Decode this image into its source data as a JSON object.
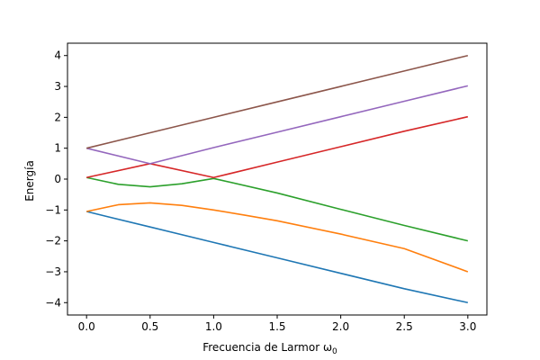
{
  "chart_data": {
    "type": "line",
    "xlabel": "Frecuencia de Larmor ω",
    "xlabel_subscript": "0",
    "ylabel": "Energía",
    "xlim": [
      -0.15,
      3.15
    ],
    "ylim": [
      -4.4,
      4.4
    ],
    "x_ticks": [
      0.0,
      0.5,
      1.0,
      1.5,
      2.0,
      2.5,
      3.0
    ],
    "x_tick_labels": [
      "0.0",
      "0.5",
      "1.0",
      "1.5",
      "2.0",
      "2.5",
      "3.0"
    ],
    "y_ticks": [
      -4,
      -3,
      -2,
      -1,
      0,
      1,
      2,
      3,
      4
    ],
    "y_tick_labels": [
      "−4",
      "−3",
      "−2",
      "−1",
      "0",
      "1",
      "2",
      "3",
      "4"
    ],
    "grid": false,
    "series": [
      {
        "color": "#1f77b4",
        "x": [
          0.0,
          0.5,
          1.0,
          1.5,
          2.0,
          2.5,
          3.0
        ],
        "y": [
          -1.05,
          -1.55,
          -2.05,
          -2.55,
          -3.05,
          -3.55,
          -4.0
        ]
      },
      {
        "color": "#ff7f0e",
        "x": [
          0.0,
          0.25,
          0.5,
          0.75,
          1.0,
          1.25,
          1.5,
          2.0,
          2.5,
          3.0
        ],
        "y": [
          -1.05,
          -0.83,
          -0.77,
          -0.85,
          -1.0,
          -1.17,
          -1.35,
          -1.78,
          -2.25,
          -3.0
        ]
      },
      {
        "color": "#2ca02c",
        "x": [
          0.0,
          0.25,
          0.5,
          0.75,
          1.0,
          1.5,
          2.0,
          2.5,
          3.0
        ],
        "y": [
          0.05,
          -0.17,
          -0.25,
          -0.15,
          0.02,
          -0.45,
          -0.98,
          -1.5,
          -2.0
        ]
      },
      {
        "color": "#d62728",
        "x": [
          0.0,
          0.5,
          1.0,
          1.5,
          2.0,
          2.5,
          3.0
        ],
        "y": [
          0.05,
          0.5,
          0.05,
          0.55,
          1.05,
          1.55,
          2.02
        ]
      },
      {
        "color": "#9467bd",
        "x": [
          0.0,
          0.5,
          1.0,
          1.5,
          2.0,
          2.5,
          3.0
        ],
        "y": [
          1.0,
          0.5,
          1.02,
          1.52,
          2.02,
          2.52,
          3.02
        ]
      },
      {
        "color": "#8c564b",
        "x": [
          0.0,
          0.5,
          1.0,
          1.5,
          2.0,
          2.5,
          3.0
        ],
        "y": [
          1.0,
          1.5,
          2.0,
          2.5,
          3.0,
          3.5,
          4.0
        ]
      }
    ]
  }
}
